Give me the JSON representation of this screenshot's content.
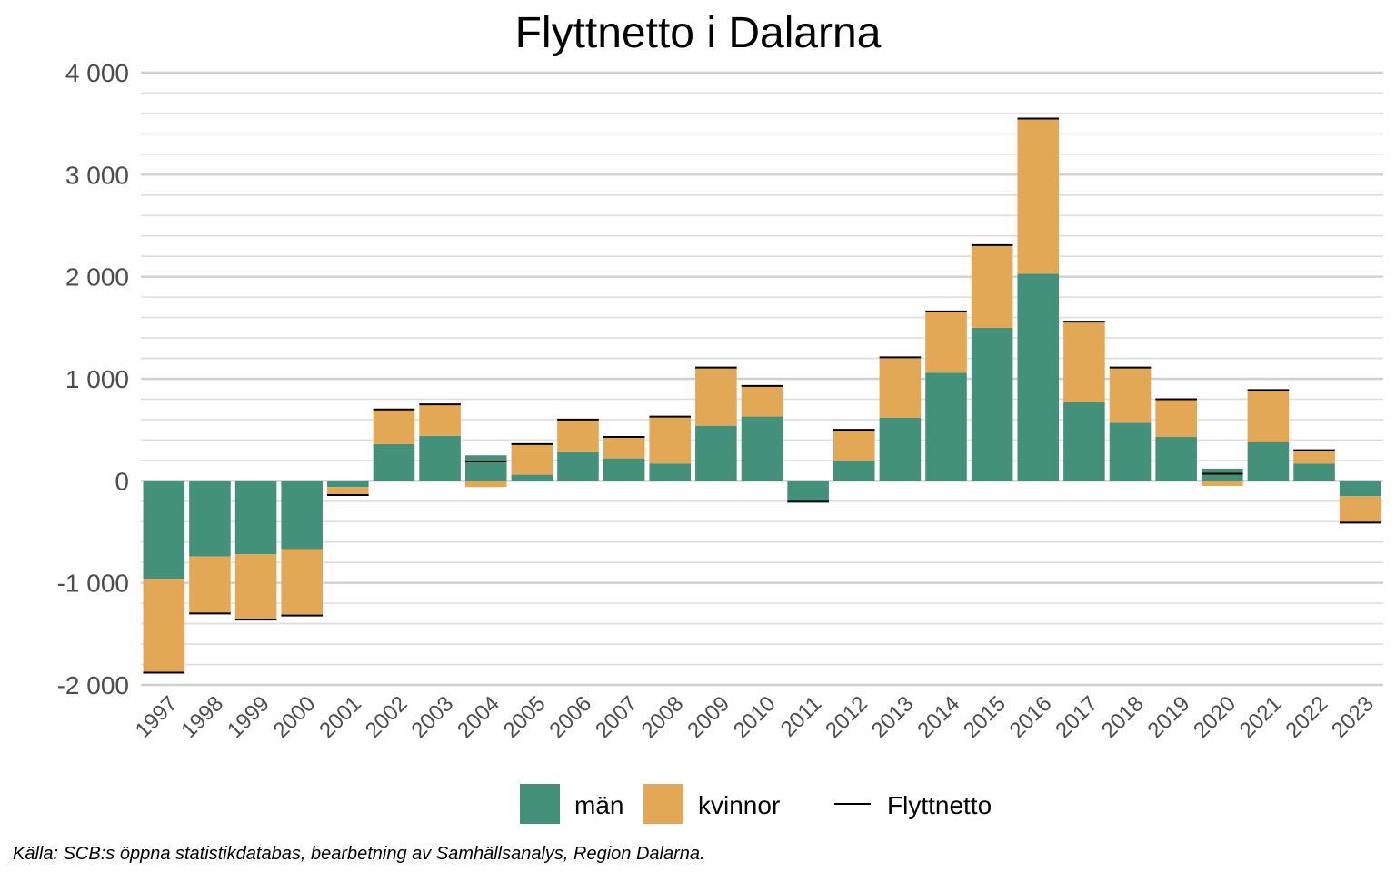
{
  "chart_data": {
    "type": "bar",
    "stacked": true,
    "title": "Flyttnetto i Dalarna",
    "caption": "Källa: SCB:s öppna statistikdatabas, bearbetning av Samhällsanalys, Region Dalarna.",
    "categories": [
      "1997",
      "1998",
      "1999",
      "2000",
      "2001",
      "2002",
      "2003",
      "2004",
      "2005",
      "2006",
      "2007",
      "2008",
      "2009",
      "2010",
      "2011",
      "2012",
      "2013",
      "2014",
      "2015",
      "2016",
      "2017",
      "2018",
      "2019",
      "2020",
      "2021",
      "2022",
      "2023"
    ],
    "series": [
      {
        "name": "män",
        "color": "#43917a",
        "values": [
          -960,
          -740,
          -720,
          -670,
          -60,
          360,
          440,
          250,
          60,
          280,
          220,
          170,
          540,
          630,
          -200,
          200,
          620,
          1060,
          1500,
          2030,
          770,
          570,
          430,
          120,
          380,
          170,
          -150
        ]
      },
      {
        "name": "kvinnor",
        "color": "#e2a855",
        "values": [
          -920,
          -560,
          -640,
          -650,
          -80,
          340,
          310,
          -60,
          300,
          320,
          210,
          460,
          570,
          300,
          -5,
          300,
          590,
          600,
          810,
          1520,
          790,
          540,
          370,
          -50,
          510,
          130,
          -260
        ]
      }
    ],
    "net": {
      "name": "Flyttnetto",
      "color": "#000000",
      "values": [
        -1880,
        -1300,
        -1360,
        -1320,
        -140,
        700,
        750,
        190,
        360,
        600,
        430,
        630,
        1110,
        930,
        -205,
        500,
        1210,
        1660,
        2310,
        3550,
        1560,
        1110,
        800,
        70,
        890,
        300,
        -410
      ]
    },
    "ylim": [
      -2000,
      4000
    ],
    "yticks": [
      -2000,
      -1000,
      0,
      1000,
      2000,
      3000,
      4000
    ],
    "ytick_labels": [
      "-2 000",
      "-1 000",
      "0",
      "1 000",
      "2 000",
      "3 000",
      "4 000"
    ],
    "xlabel": "",
    "ylabel": "",
    "grid": true,
    "legend_position": "bottom"
  }
}
